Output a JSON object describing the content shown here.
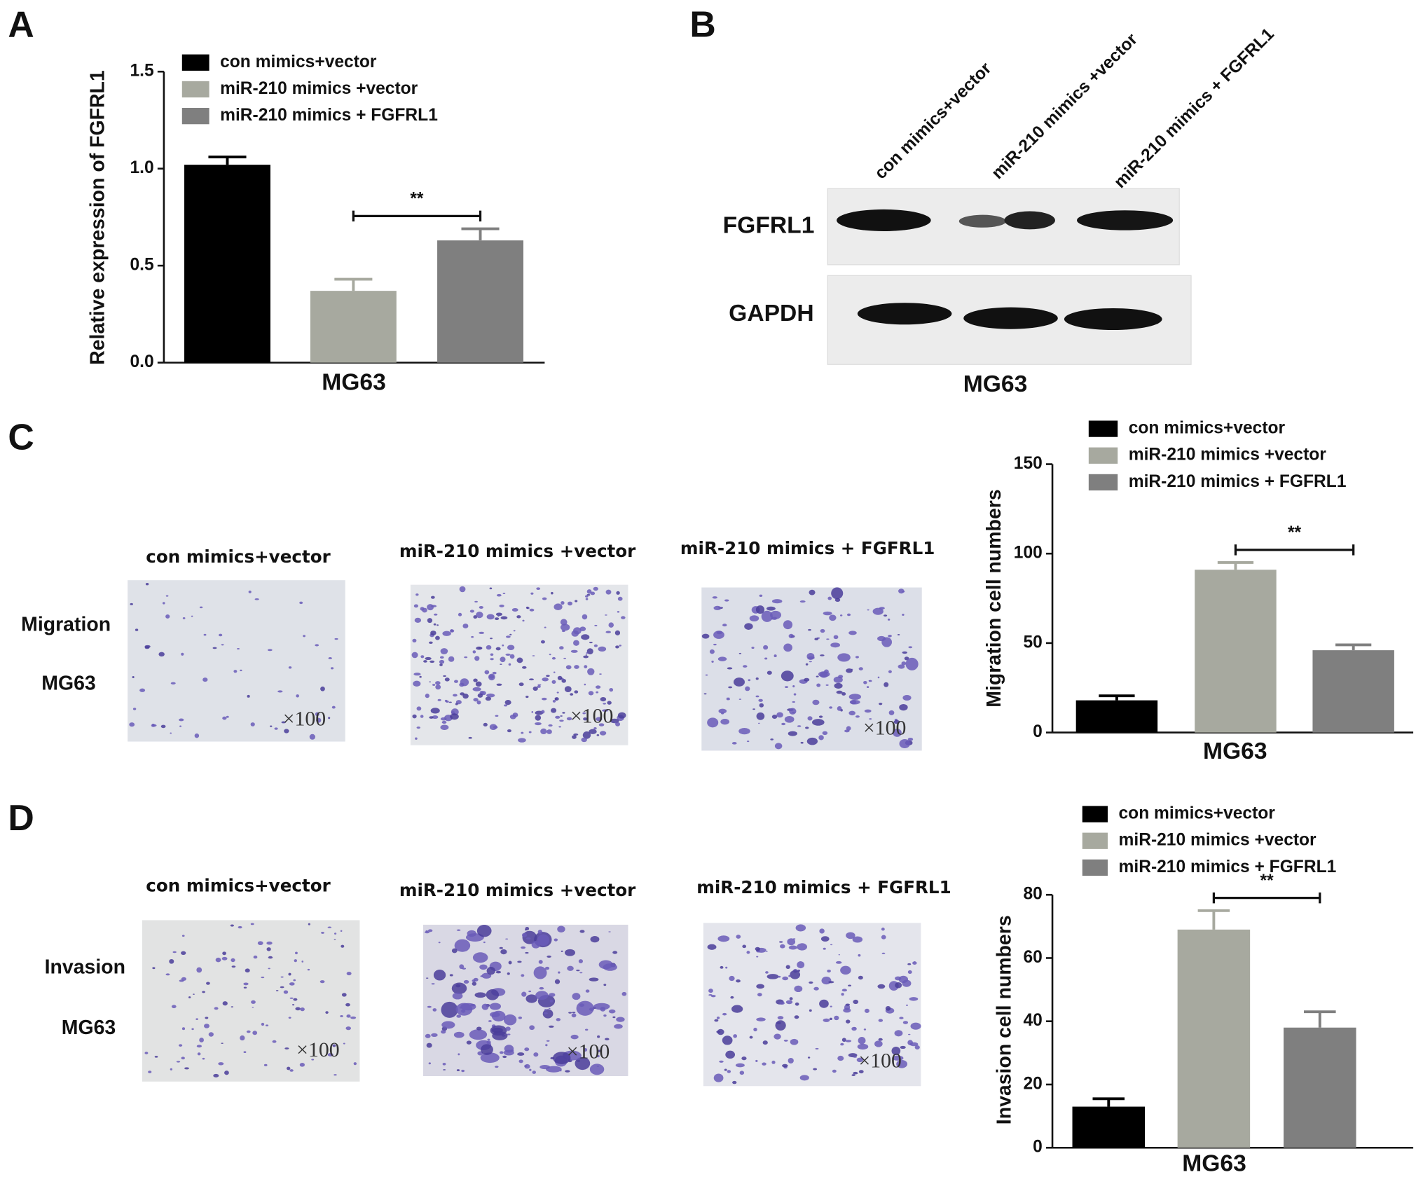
{
  "panels": {
    "labels": [
      "A",
      "B",
      "C",
      "D"
    ]
  },
  "blot": {
    "lanes": [
      "con mimics+vector",
      "miR-210 mimics +vector",
      "miR-210 mimics + FGFRL1"
    ],
    "rows": [
      "FGFRL1",
      "GAPDH"
    ],
    "caption": "MG63"
  },
  "migration": {
    "row_labels": [
      "Migration",
      "MG63"
    ],
    "columns": [
      "con mimics+vector",
      "miR-210 mimics +vector",
      "miR-210 mimics + FGFRL1"
    ],
    "magnifications": [
      "×100",
      "×100",
      "×100"
    ]
  },
  "invasion": {
    "row_labels": [
      "Invasion",
      "MG63"
    ],
    "columns": [
      "con mimics+vector",
      "miR-210 mimics +vector",
      "miR-210 mimics + FGFRL1"
    ],
    "magnifications": [
      "×100",
      "×100",
      "×100"
    ]
  },
  "chart_data": [
    {
      "type": "bar",
      "ylabel": "Relative expression of FGFRL1",
      "xlabel": "MG63",
      "categories": [
        "con mimics+vector",
        "miR-210 mimics +vector",
        "miR-210 mimics + FGFRL1"
      ],
      "values": [
        1.02,
        0.37,
        0.63
      ],
      "errors": [
        0.04,
        0.06,
        0.06
      ],
      "colors": [
        "#000000",
        "#a7a99f",
        "#7f7f7f"
      ],
      "ylim": [
        0,
        1.5
      ],
      "yticks": [
        {
          "value": 0,
          "label": "0.0"
        },
        {
          "value": 0.5,
          "label": "0.5"
        },
        {
          "value": 1,
          "label": "1.0"
        },
        {
          "value": 1.5,
          "label": "1.5"
        }
      ],
      "annotation": "**"
    },
    {
      "type": "bar",
      "ylabel": "Migration cell numbers",
      "xlabel": "MG63",
      "categories": [
        "con mimics+vector",
        "miR-210 mimics +vector",
        "miR-210 mimics + FGFRL1"
      ],
      "values": [
        18,
        91,
        46
      ],
      "errors": [
        2.5,
        4,
        3
      ],
      "colors": [
        "#000000",
        "#a7a99f",
        "#7f7f7f"
      ],
      "ylim": [
        0,
        150
      ],
      "yticks": [
        0,
        50,
        100,
        150
      ],
      "annotation": "**"
    },
    {
      "type": "bar",
      "ylabel": "Invasion cell numbers",
      "xlabel": "MG63",
      "categories": [
        "con mimics+vector",
        "miR-210 mimics +vector",
        "miR-210 mimics + FGFRL1"
      ],
      "values": [
        13,
        69,
        38
      ],
      "errors": [
        2.5,
        6,
        5
      ],
      "colors": [
        "#000000",
        "#a7a99f",
        "#7f7f7f"
      ],
      "ylim": [
        0,
        80
      ],
      "yticks": [
        0,
        20,
        40,
        60,
        80
      ],
      "annotation": "**"
    }
  ]
}
